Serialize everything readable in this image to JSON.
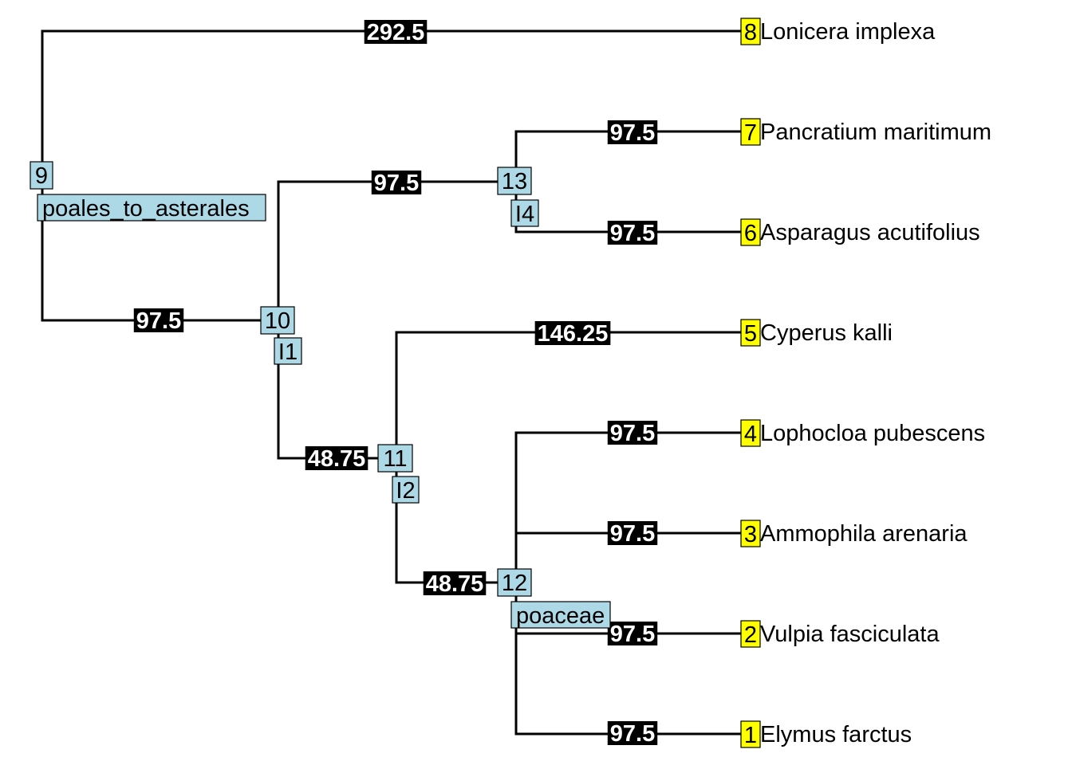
{
  "colors": {
    "edge": "#000000",
    "branch_label_bg": "#000000",
    "branch_label_text": "#ffffff",
    "internal_node_bg": "#add8e6",
    "tip_node_bg": "#ffff00"
  },
  "tips": [
    {
      "id": "1",
      "name": "Elymus farctus"
    },
    {
      "id": "2",
      "name": "Vulpia fasciculata"
    },
    {
      "id": "3",
      "name": "Ammophila arenaria"
    },
    {
      "id": "4",
      "name": "Lophocloa pubescens"
    },
    {
      "id": "5",
      "name": "Cyperus kalli"
    },
    {
      "id": "6",
      "name": "Asparagus acutifolius"
    },
    {
      "id": "7",
      "name": "Pancratium maritimum"
    },
    {
      "id": "8",
      "name": "Lonicera implexa"
    }
  ],
  "internal_nodes": [
    {
      "id": "9",
      "sublabel": "poales_to_asterales"
    },
    {
      "id": "10",
      "sublabel": "I1"
    },
    {
      "id": "11",
      "sublabel": "I2"
    },
    {
      "id": "12",
      "sublabel": "poaceae"
    },
    {
      "id": "13",
      "sublabel": "I4"
    }
  ],
  "edges": [
    {
      "parent": "9",
      "child": "8",
      "length": "292.5"
    },
    {
      "parent": "9",
      "child": "10",
      "length": "97.5"
    },
    {
      "parent": "10",
      "child": "13",
      "length": "97.5"
    },
    {
      "parent": "10",
      "child": "11",
      "length": "48.75"
    },
    {
      "parent": "13",
      "child": "7",
      "length": "97.5"
    },
    {
      "parent": "13",
      "child": "6",
      "length": "97.5"
    },
    {
      "parent": "11",
      "child": "5",
      "length": "146.25"
    },
    {
      "parent": "11",
      "child": "12",
      "length": "48.75"
    },
    {
      "parent": "12",
      "child": "4",
      "length": "97.5"
    },
    {
      "parent": "12",
      "child": "3",
      "length": "97.5"
    },
    {
      "parent": "12",
      "child": "2",
      "length": "97.5"
    },
    {
      "parent": "12",
      "child": "1",
      "length": "97.5"
    }
  ]
}
